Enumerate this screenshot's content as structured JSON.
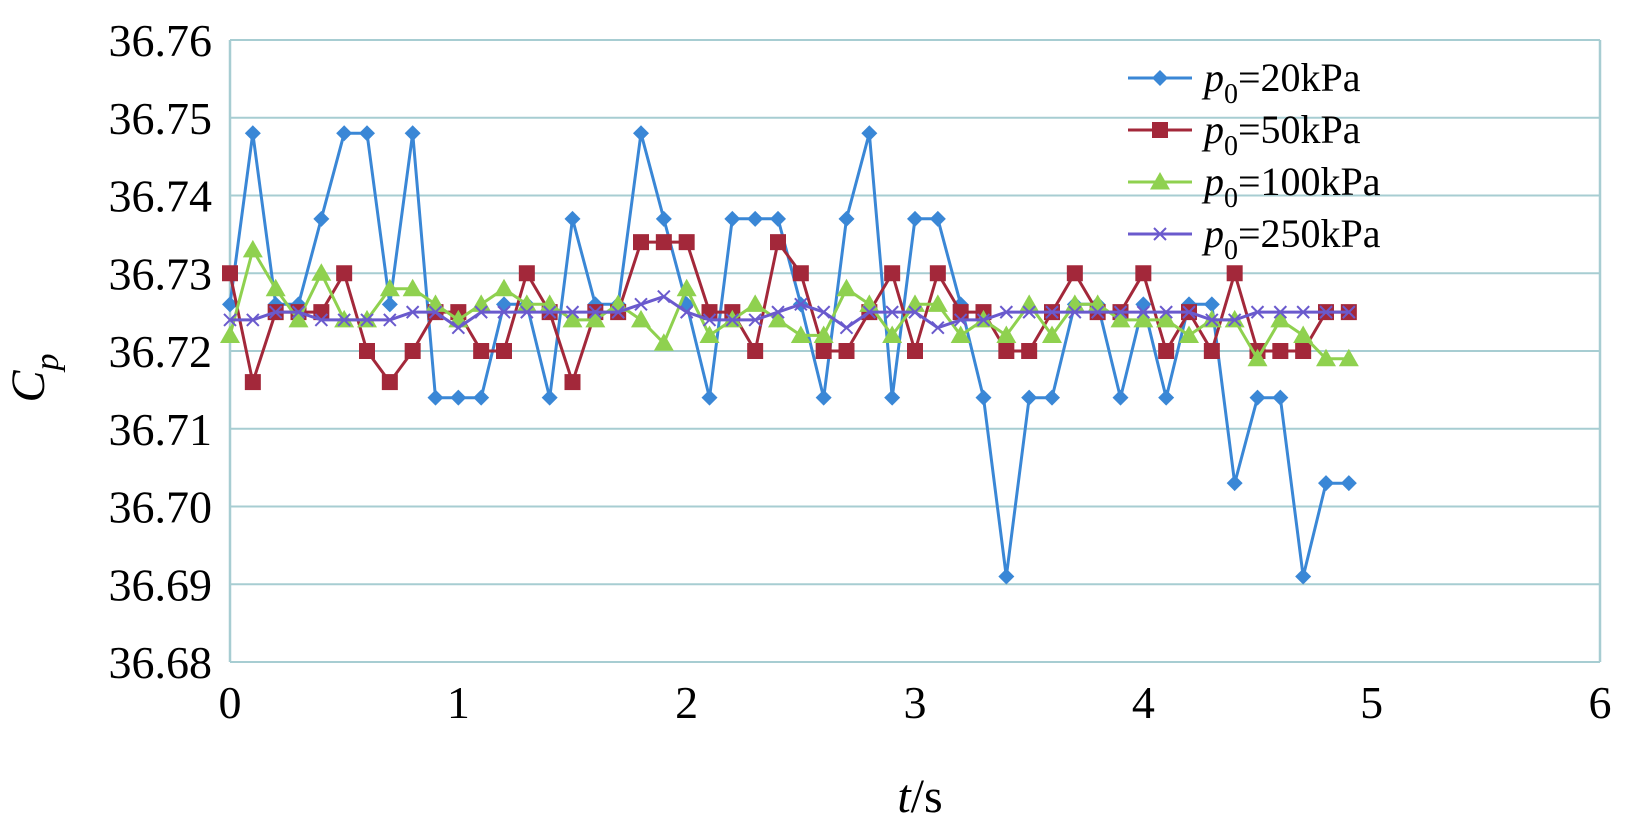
{
  "chart_data": {
    "type": "line",
    "title": "",
    "xlabel_italic": "t",
    "xlabel_unit": "/s",
    "ylabel_main": "C",
    "ylabel_sub": "p",
    "xlim": [
      0,
      6
    ],
    "ylim": [
      36.68,
      36.76
    ],
    "xticks": [
      "0",
      "1",
      "2",
      "3",
      "4",
      "5",
      "6"
    ],
    "yticks": [
      "36.68",
      "36.69",
      "36.70",
      "36.71",
      "36.72",
      "36.73",
      "36.74",
      "36.75",
      "36.76"
    ],
    "grid": "horizontal",
    "legend_position": "top-right",
    "x": [
      0,
      0.1,
      0.2,
      0.3,
      0.4,
      0.5,
      0.6,
      0.7,
      0.8,
      0.9,
      1.0,
      1.1,
      1.2,
      1.3,
      1.4,
      1.5,
      1.6,
      1.7,
      1.8,
      1.9,
      2.0,
      2.1,
      2.2,
      2.3,
      2.4,
      2.5,
      2.6,
      2.7,
      2.8,
      2.9,
      3.0,
      3.1,
      3.2,
      3.3,
      3.4,
      3.5,
      3.6,
      3.7,
      3.8,
      3.9,
      4.0,
      4.1,
      4.2,
      4.3,
      4.4,
      4.5,
      4.6,
      4.7,
      4.8,
      4.9
    ],
    "series": [
      {
        "legend_sym": "p",
        "legend_sub": "0",
        "legend_val": "=20kPa",
        "color": "#3a87d6",
        "marker": "diamond",
        "values": [
          36.726,
          36.748,
          36.726,
          36.726,
          36.737,
          36.748,
          36.748,
          36.726,
          36.748,
          36.714,
          36.714,
          36.714,
          36.726,
          36.726,
          36.714,
          36.737,
          36.726,
          36.726,
          36.748,
          36.737,
          36.726,
          36.714,
          36.737,
          36.737,
          36.737,
          36.726,
          36.714,
          36.737,
          36.748,
          36.714,
          36.737,
          36.737,
          36.726,
          36.714,
          36.691,
          36.714,
          36.714,
          36.726,
          36.726,
          36.714,
          36.726,
          36.714,
          36.726,
          36.726,
          36.703,
          36.714,
          36.714,
          36.691,
          36.703,
          36.703
        ]
      },
      {
        "legend_sym": "p",
        "legend_sub": "0",
        "legend_val": "=50kPa",
        "color": "#a3283a",
        "marker": "square",
        "values": [
          36.73,
          36.716,
          36.725,
          36.725,
          36.725,
          36.73,
          36.72,
          36.716,
          36.72,
          36.725,
          36.725,
          36.72,
          36.72,
          36.73,
          36.725,
          36.716,
          36.725,
          36.725,
          36.734,
          36.734,
          36.734,
          36.725,
          36.725,
          36.72,
          36.734,
          36.73,
          36.72,
          36.72,
          36.725,
          36.73,
          36.72,
          36.73,
          36.725,
          36.725,
          36.72,
          36.72,
          36.725,
          36.73,
          36.725,
          36.725,
          36.73,
          36.72,
          36.725,
          36.72,
          36.73,
          36.72,
          36.72,
          36.72,
          36.725,
          36.725
        ]
      },
      {
        "legend_sym": "p",
        "legend_sub": "0",
        "legend_val": "=100kPa",
        "color": "#8fd14f",
        "marker": "triangle",
        "values": [
          36.722,
          36.733,
          36.728,
          36.724,
          36.73,
          36.724,
          36.724,
          36.728,
          36.728,
          36.726,
          36.724,
          36.726,
          36.728,
          36.726,
          36.726,
          36.724,
          36.724,
          36.726,
          36.724,
          36.721,
          36.728,
          36.722,
          36.724,
          36.726,
          36.724,
          36.722,
          36.722,
          36.728,
          36.726,
          36.722,
          36.726,
          36.726,
          36.722,
          36.724,
          36.722,
          36.726,
          36.722,
          36.726,
          36.726,
          36.724,
          36.724,
          36.724,
          36.722,
          36.724,
          36.724,
          36.719,
          36.724,
          36.722,
          36.719,
          36.719
        ]
      },
      {
        "legend_sym": "p",
        "legend_sub": "0",
        "legend_val": "=250kPa",
        "color": "#6a5acd",
        "marker": "cross",
        "values": [
          36.724,
          36.724,
          36.725,
          36.725,
          36.724,
          36.724,
          36.724,
          36.724,
          36.725,
          36.725,
          36.723,
          36.725,
          36.725,
          36.725,
          36.725,
          36.725,
          36.725,
          36.725,
          36.726,
          36.727,
          36.725,
          36.724,
          36.724,
          36.724,
          36.725,
          36.726,
          36.725,
          36.723,
          36.725,
          36.725,
          36.725,
          36.723,
          36.724,
          36.724,
          36.725,
          36.725,
          36.725,
          36.725,
          36.725,
          36.725,
          36.725,
          36.725,
          36.725,
          36.724,
          36.724,
          36.725,
          36.725,
          36.725,
          36.725,
          36.725
        ]
      }
    ]
  }
}
